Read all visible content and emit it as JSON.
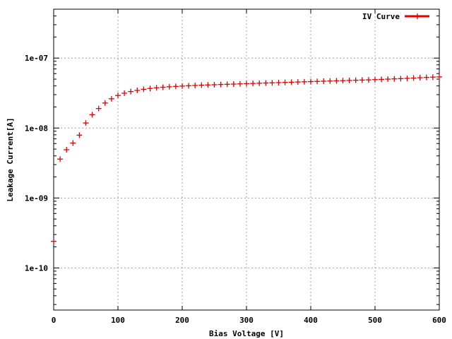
{
  "chart_data": {
    "type": "scatter",
    "xlabel": "Bias Voltage [V]",
    "ylabel": "Leakage Current[A]",
    "xlim": [
      0,
      600
    ],
    "ylim": [
      2.5e-11,
      5e-07
    ],
    "yscale": "log",
    "grid": true,
    "legend_position": "top-right",
    "x_ticks": [
      "0",
      "100",
      "200",
      "300",
      "400",
      "500",
      "600"
    ],
    "y_ticks": [
      {
        "value": 1e-07,
        "label": "1e-07"
      },
      {
        "value": 1e-08,
        "label": "1e-08"
      },
      {
        "value": 1e-09,
        "label": "1e-09"
      },
      {
        "value": 1e-10,
        "label": "1e-10"
      }
    ],
    "series": [
      {
        "name": "IV Curve",
        "color": "#e00000",
        "points": [
          [
            0,
            2.4e-10
          ],
          [
            10,
            3.6e-09
          ],
          [
            20,
            4.9e-09
          ],
          [
            30,
            6.1e-09
          ],
          [
            40,
            7.9e-09
          ],
          [
            50,
            1.18e-08
          ],
          [
            60,
            1.55e-08
          ],
          [
            70,
            1.9e-08
          ],
          [
            80,
            2.28e-08
          ],
          [
            90,
            2.62e-08
          ],
          [
            100,
            2.92e-08
          ],
          [
            110,
            3.15e-08
          ],
          [
            120,
            3.32e-08
          ],
          [
            130,
            3.45e-08
          ],
          [
            140,
            3.58e-08
          ],
          [
            150,
            3.68e-08
          ],
          [
            160,
            3.76e-08
          ],
          [
            170,
            3.83e-08
          ],
          [
            180,
            3.89e-08
          ],
          [
            190,
            3.94e-08
          ],
          [
            200,
            3.98e-08
          ],
          [
            210,
            4.02e-08
          ],
          [
            220,
            4.06e-08
          ],
          [
            230,
            4.1e-08
          ],
          [
            240,
            4.13e-08
          ],
          [
            250,
            4.16e-08
          ],
          [
            260,
            4.19e-08
          ],
          [
            270,
            4.22e-08
          ],
          [
            280,
            4.25e-08
          ],
          [
            290,
            4.28e-08
          ],
          [
            300,
            4.31e-08
          ],
          [
            310,
            4.34e-08
          ],
          [
            320,
            4.37e-08
          ],
          [
            330,
            4.4e-08
          ],
          [
            340,
            4.43e-08
          ],
          [
            350,
            4.46e-08
          ],
          [
            360,
            4.49e-08
          ],
          [
            370,
            4.52e-08
          ],
          [
            380,
            4.55e-08
          ],
          [
            390,
            4.58e-08
          ],
          [
            400,
            4.61e-08
          ],
          [
            410,
            4.64e-08
          ],
          [
            420,
            4.67e-08
          ],
          [
            430,
            4.7e-08
          ],
          [
            440,
            4.73e-08
          ],
          [
            450,
            4.76e-08
          ],
          [
            460,
            4.79e-08
          ],
          [
            470,
            4.82e-08
          ],
          [
            480,
            4.85e-08
          ],
          [
            490,
            4.88e-08
          ],
          [
            500,
            4.92e-08
          ],
          [
            510,
            4.96e-08
          ],
          [
            520,
            5e-08
          ],
          [
            530,
            5.04e-08
          ],
          [
            540,
            5.08e-08
          ],
          [
            550,
            5.13e-08
          ],
          [
            560,
            5.18e-08
          ],
          [
            570,
            5.24e-08
          ],
          [
            580,
            5.29e-08
          ],
          [
            590,
            5.34e-08
          ],
          [
            600,
            5.38e-08
          ]
        ]
      }
    ]
  }
}
